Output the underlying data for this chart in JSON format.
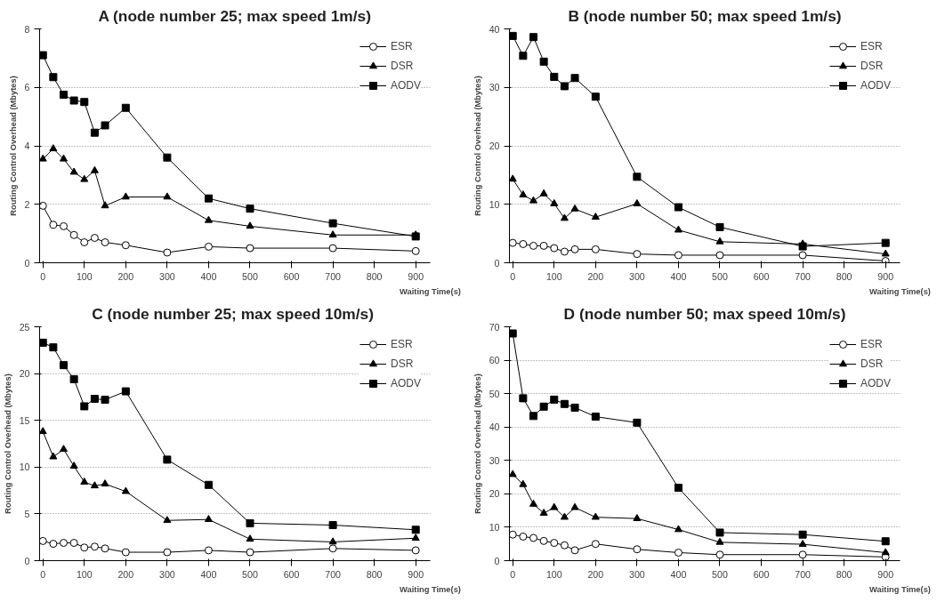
{
  "chart_data": [
    {
      "type": "line",
      "title": "A (node number 25; max speed 1m/s)",
      "xlabel": "Waiting Time(s)",
      "ylabel": "Routing Control Overhead (Mbytes)",
      "x": [
        0,
        25,
        50,
        75,
        100,
        125,
        150,
        200,
        300,
        400,
        500,
        700,
        900
      ],
      "xlim": [
        -8,
        935
      ],
      "xticks": [
        0,
        100,
        200,
        300,
        400,
        500,
        600,
        700,
        800,
        900
      ],
      "ylim": [
        0,
        8
      ],
      "yticks": [
        0,
        2,
        4,
        6,
        8
      ],
      "grid": "y",
      "legend": "top right",
      "series": [
        {
          "name": "ESR",
          "color": "#000000",
          "marker": "circle",
          "values": [
            1.95,
            1.3,
            1.25,
            0.95,
            0.7,
            0.85,
            0.7,
            0.6,
            0.35,
            0.55,
            0.5,
            0.5,
            0.4
          ]
        },
        {
          "name": "DSR",
          "color": "#000000",
          "marker": "triangle",
          "values": [
            3.55,
            3.9,
            3.55,
            3.1,
            2.85,
            3.15,
            1.95,
            2.25,
            2.25,
            1.45,
            1.25,
            0.95,
            0.95
          ]
        },
        {
          "name": "AODV",
          "color": "#000000",
          "marker": "square",
          "values": [
            7.1,
            6.35,
            5.75,
            5.55,
            5.5,
            4.45,
            4.7,
            5.3,
            3.6,
            2.2,
            1.85,
            1.35,
            0.9
          ]
        }
      ]
    },
    {
      "type": "line",
      "title": "B (node number 50; max speed 1m/s)",
      "xlabel": "Waiting Time(s)",
      "ylabel": "Routing Control Overhead (Mbytes)",
      "x": [
        0,
        25,
        50,
        75,
        100,
        125,
        150,
        200,
        300,
        400,
        500,
        700,
        900
      ],
      "xlim": [
        -8,
        935
      ],
      "xticks": [
        0,
        100,
        200,
        300,
        400,
        500,
        600,
        700,
        800,
        900
      ],
      "ylim": [
        0,
        40
      ],
      "yticks": [
        0,
        10,
        20,
        30,
        40
      ],
      "grid": "y",
      "legend": "top right",
      "series": [
        {
          "name": "ESR",
          "color": "#000000",
          "marker": "circle",
          "values": [
            3.4,
            3.2,
            2.9,
            2.9,
            2.5,
            1.9,
            2.3,
            2.3,
            1.5,
            1.3,
            1.3,
            1.3,
            0.3
          ]
        },
        {
          "name": "DSR",
          "color": "#000000",
          "marker": "triangle",
          "values": [
            14.3,
            11.6,
            10.6,
            11.8,
            10.1,
            7.6,
            9.2,
            7.8,
            10.1,
            5.6,
            3.6,
            3.2,
            1.5
          ]
        },
        {
          "name": "AODV",
          "color": "#000000",
          "marker": "square",
          "values": [
            38.8,
            35.4,
            38.6,
            34.4,
            31.8,
            30.2,
            31.6,
            28.4,
            14.7,
            9.5,
            6.1,
            2.8,
            3.4
          ]
        }
      ]
    },
    {
      "type": "line",
      "title": "C  (node number 25; max speed 10m/s)",
      "xlabel": "Waiting Time(s)",
      "ylabel": "Routing Control Overhead (Mbytes)",
      "x": [
        0,
        25,
        50,
        75,
        100,
        125,
        150,
        200,
        300,
        400,
        500,
        700,
        900
      ],
      "xlim": [
        -8,
        935
      ],
      "xticks": [
        0,
        100,
        200,
        300,
        400,
        500,
        600,
        700,
        800,
        900
      ],
      "ylim": [
        0,
        25
      ],
      "yticks": [
        0,
        5,
        10,
        15,
        20,
        25
      ],
      "grid": "y",
      "legend": "top right",
      "series": [
        {
          "name": "ESR",
          "color": "#000000",
          "marker": "circle",
          "values": [
            2.1,
            1.8,
            1.9,
            1.9,
            1.4,
            1.5,
            1.3,
            0.9,
            0.9,
            1.1,
            0.9,
            1.3,
            1.1
          ]
        },
        {
          "name": "DSR",
          "color": "#000000",
          "marker": "triangle",
          "values": [
            13.8,
            11.1,
            11.9,
            10.1,
            8.4,
            8.0,
            8.2,
            7.4,
            4.3,
            4.4,
            2.3,
            2.0,
            2.4
          ]
        },
        {
          "name": "AODV",
          "color": "#000000",
          "marker": "square",
          "values": [
            23.3,
            22.8,
            20.9,
            19.4,
            16.5,
            17.3,
            17.2,
            18.1,
            10.8,
            8.1,
            4.0,
            3.8,
            3.3
          ]
        }
      ]
    },
    {
      "type": "line",
      "title": "D (node number 50; max speed 10m/s)",
      "xlabel": "Waiting Time(s)",
      "ylabel": "Routing Control Overhead (Mbytes)",
      "x": [
        0,
        25,
        50,
        75,
        100,
        125,
        150,
        200,
        300,
        400,
        500,
        700,
        900
      ],
      "xlim": [
        -8,
        935
      ],
      "xticks": [
        0,
        100,
        200,
        300,
        400,
        500,
        600,
        700,
        800,
        900
      ],
      "ylim": [
        0,
        70
      ],
      "yticks": [
        0,
        10,
        20,
        30,
        40,
        50,
        60,
        70
      ],
      "grid": "y",
      "legend": "top right",
      "series": [
        {
          "name": "ESR",
          "color": "#000000",
          "marker": "circle",
          "values": [
            7.8,
            7.2,
            6.8,
            5.9,
            5.3,
            4.6,
            3.1,
            5.0,
            3.4,
            2.4,
            1.8,
            1.8,
            1.1
          ]
        },
        {
          "name": "DSR",
          "color": "#000000",
          "marker": "triangle",
          "values": [
            25.8,
            22.8,
            16.9,
            14.2,
            15.9,
            13.0,
            15.9,
            13.0,
            12.6,
            9.3,
            5.5,
            4.9,
            2.4
          ]
        },
        {
          "name": "AODV",
          "color": "#000000",
          "marker": "square",
          "values": [
            68,
            48.6,
            43.3,
            46.1,
            48.2,
            46.9,
            45.8,
            43.1,
            41.3,
            21.8,
            8.4,
            7.8,
            5.8
          ]
        }
      ]
    }
  ]
}
